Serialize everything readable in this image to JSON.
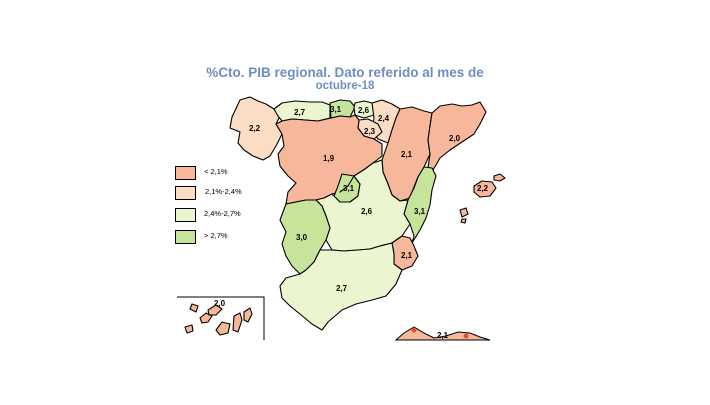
{
  "title": "%Cto.  PIB regional. Dato referido al mes de",
  "subtitle": "octubre-18",
  "legend": [
    {
      "label": "< 2,1%",
      "color": "#f7b79a"
    },
    {
      "label": "2,1%-2,4%",
      "color": "#fbdcc4"
    },
    {
      "label": "2,4%-2,7%",
      "color": "#ebf5cf"
    },
    {
      "label": "> 2,7%",
      "color": "#c6e49a"
    }
  ],
  "colors": {
    "lt21": "#f7b79a",
    "r21_24": "#fbdcc4",
    "r24_27": "#ebf5cf",
    "gt27": "#c6e49a",
    "outline": "#000000",
    "title": "#6d8fc0"
  },
  "regions": [
    {
      "id": "galicia",
      "value": "2,2"
    },
    {
      "id": "asturias",
      "value": "2,7"
    },
    {
      "id": "cantabria",
      "value": "3,1"
    },
    {
      "id": "pais-vasco",
      "value": "2,6"
    },
    {
      "id": "navarra",
      "value": "2,4"
    },
    {
      "id": "la-rioja",
      "value": "2,3"
    },
    {
      "id": "castilla-y-leon",
      "value": "1,9"
    },
    {
      "id": "aragon",
      "value": "2,1"
    },
    {
      "id": "cataluna",
      "value": "2,0"
    },
    {
      "id": "madrid",
      "value": "3,1"
    },
    {
      "id": "castilla-la-mancha",
      "value": "2,6"
    },
    {
      "id": "extremadura",
      "value": "3,0"
    },
    {
      "id": "comunidad-valenciana",
      "value": "3,1"
    },
    {
      "id": "murcia",
      "value": "2,1"
    },
    {
      "id": "andalucia",
      "value": "2,7"
    },
    {
      "id": "baleares",
      "value": "2,2"
    },
    {
      "id": "canarias",
      "value": "2,0"
    },
    {
      "id": "ceuta-melilla",
      "value": "2,1"
    }
  ]
}
